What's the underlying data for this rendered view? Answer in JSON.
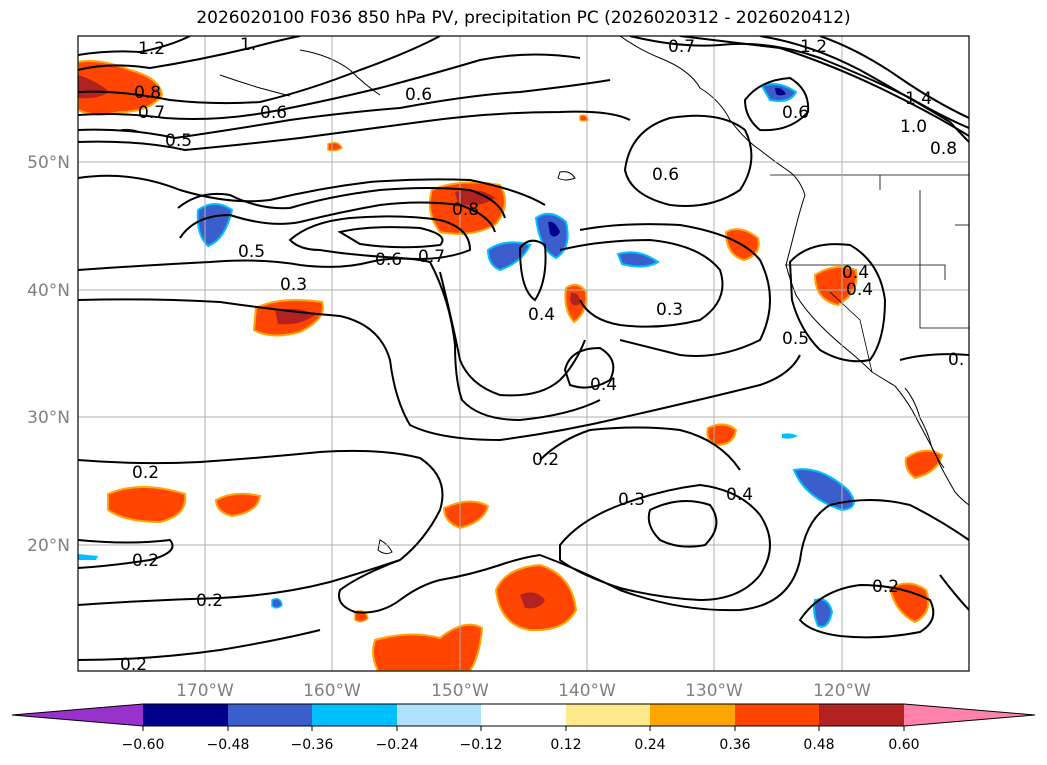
{
  "title": "2026020100 F036 850 hPa PV, precipitation PC (2026020312 - 2026020412)",
  "map": {
    "lat_labels": [
      "50°N",
      "40°N",
      "30°N",
      "20°N"
    ],
    "lon_labels": [
      "170°W",
      "160°W",
      "150°W",
      "140°W",
      "130°W",
      "120°W"
    ],
    "contour_labels": [
      "1.2",
      "1.",
      "0.8",
      "0.7",
      "0.5",
      "0.6",
      "0.6",
      "0.7",
      "1.2",
      "1.4",
      "1.0",
      "0.8",
      "0.6",
      "0.6",
      "0.8",
      "0.5",
      "0.6",
      "0.7",
      "0.3",
      "0.4",
      "0.3",
      "0.4",
      "0.4",
      "0.5",
      "0.",
      "0.4",
      "0.2",
      "0.2",
      "0.3",
      "0.4",
      "0.2",
      "0.2",
      "0.2",
      "0.2"
    ]
  },
  "colorbar": {
    "ticks": [
      "−0.60",
      "−0.48",
      "−0.36",
      "−0.24",
      "−0.12",
      "0.12",
      "0.24",
      "0.36",
      "0.48",
      "0.60"
    ],
    "colors": [
      "#9932cc",
      "#00008b",
      "#3a5fcd",
      "#00bfff",
      "#b0e2ff",
      "#ffffff",
      "#ffe98a",
      "#ffa500",
      "#ff4500",
      "#b22222",
      "#ff82ab",
      "#ff82ab"
    ]
  },
  "colors": {
    "frame": "#000000",
    "grid": "#b0b0b0",
    "label_gray": "#808080"
  }
}
